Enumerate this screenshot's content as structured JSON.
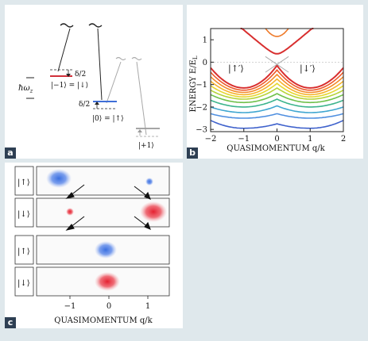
{
  "panel_a": {
    "letter": "a",
    "hbar_omega_z": "ħω",
    "hbar_omega_sub": "z",
    "delta_half": "δ/2",
    "state_m1": "|−1⟩ = |↓⟩",
    "state_0": "|0⟩ = |↑⟩",
    "state_p1": "|+1⟩",
    "colors": {
      "red": "#d0303a",
      "blue": "#3f6fd8",
      "gray": "#9a9a9a"
    }
  },
  "panel_b": {
    "letter": "b",
    "ylabel": "ENERGY E/E",
    "ylabel_sub": "L",
    "xlabel": "QUASIMOMENTUM q/k",
    "x_ticks": [
      "−2",
      "−1",
      "0",
      "1",
      "2"
    ],
    "y_ticks": [
      "1",
      "0",
      "−1",
      "−2",
      "−3"
    ],
    "label_up": "|↑′⟩",
    "label_down": "|↓′⟩",
    "chart_data": {
      "type": "line",
      "xlabel": "QUASIMOMENTUM q/k",
      "ylabel": "ENERGY E/E_L",
      "xlim": [
        -2,
        2
      ],
      "ylim": [
        -3.1,
        1.5
      ],
      "series": [
        {
          "min": -1.15,
          "edge": -0.25,
          "center": -0.15,
          "color": "#d82f2f"
        },
        {
          "min": -1.25,
          "edge": -0.45,
          "center": -0.35,
          "color": "#ee5a2a"
        },
        {
          "min": -1.35,
          "edge": -0.65,
          "center": -0.55,
          "color": "#f48a2a"
        },
        {
          "min": -1.45,
          "edge": -0.85,
          "center": -0.75,
          "color": "#f6b32d"
        },
        {
          "min": -1.55,
          "edge": -1.05,
          "center": -0.95,
          "color": "#e6d730"
        },
        {
          "min": -1.65,
          "edge": -1.25,
          "center": -1.15,
          "color": "#b7d43a"
        },
        {
          "min": -1.8,
          "edge": -1.45,
          "center": -1.4,
          "color": "#6fc04a"
        },
        {
          "min": -2.0,
          "edge": -1.7,
          "center": -1.65,
          "color": "#3cb48c"
        },
        {
          "min": -2.25,
          "edge": -2.0,
          "center": -1.95,
          "color": "#3fa6d0"
        },
        {
          "min": -2.5,
          "edge": -2.3,
          "center": -2.3,
          "color": "#4f8fe0"
        },
        {
          "min": -2.95,
          "edge": -2.6,
          "center": -2.75,
          "color": "#3f62cc"
        }
      ]
    }
  },
  "panel_c": {
    "letter": "c",
    "row_labels": [
      "|↑⟩",
      "|↓⟩",
      "|↑⟩",
      "|↓⟩"
    ],
    "x_ticks": [
      "−1",
      "0",
      "1"
    ],
    "xlabel": "QUASIMOMENTUM q/k"
  }
}
